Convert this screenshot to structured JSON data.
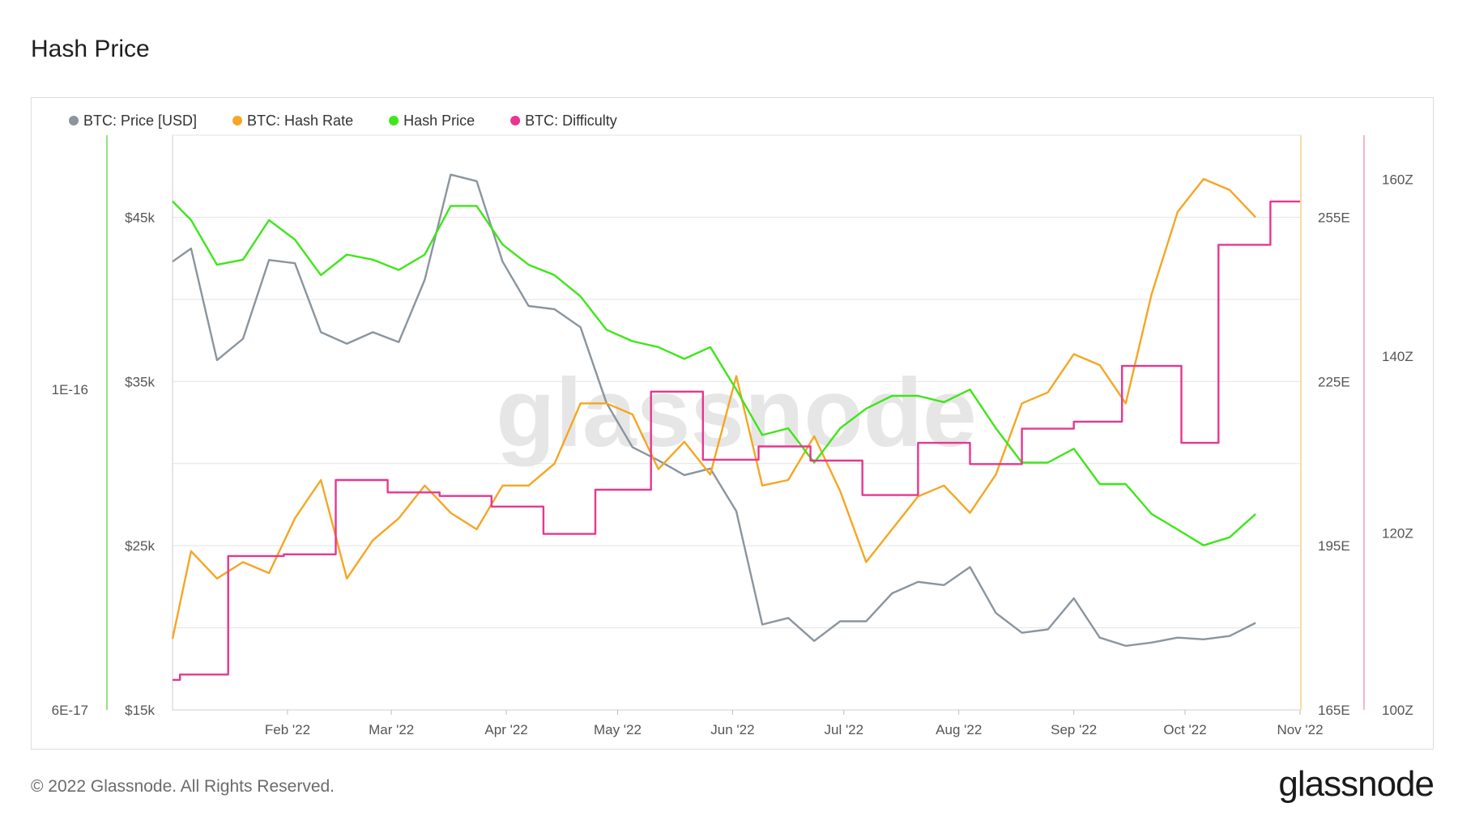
{
  "page": {
    "title": "Hash Price",
    "copyright": "© 2022 Glassnode. All Rights Reserved.",
    "logo_text": "glassnode",
    "watermark": "glassnode"
  },
  "chart_data": {
    "type": "line",
    "title": "Hash Price",
    "grid": true,
    "legend_position": "top-left",
    "x_ticks": [
      "Feb '22",
      "Mar '22",
      "Apr '22",
      "May '22",
      "Jun '22",
      "Jul '22",
      "Aug '22",
      "Sep '22",
      "Oct '22",
      "Nov '22"
    ],
    "x_range": [
      "2022-01-01",
      "2022-11-01"
    ],
    "axes": {
      "hash_price": {
        "side": "left",
        "scale": "log",
        "range": [
          6e-17,
          1.5e-16
        ],
        "ticks": [
          "6E-17",
          "1E-16"
        ],
        "color": "#7ed35c"
      },
      "price": {
        "side": "left",
        "range": [
          15000,
          50000
        ],
        "ticks": [
          "$15k",
          "$25k",
          "$35k",
          "$45k"
        ],
        "color": "#9aa3ab"
      },
      "hash_rate": {
        "side": "right",
        "unit": "EH/s",
        "range": [
          165,
          270
        ],
        "ticks": [
          "165E",
          "195E",
          "225E",
          "255E"
        ],
        "color": "#f5a623"
      },
      "difficulty": {
        "side": "right",
        "unit": "T",
        "range": [
          100,
          165
        ],
        "ticks": [
          "100Z",
          "120Z",
          "140Z",
          "160Z"
        ],
        "color": "#e8368f"
      }
    },
    "series": [
      {
        "name": "BTC: Price [USD]",
        "axis": "price",
        "color": "#8a959e",
        "style": "line",
        "points": [
          [
            "2022-01-01",
            42300
          ],
          [
            "2022-01-06",
            43100
          ],
          [
            "2022-01-13",
            36300
          ],
          [
            "2022-01-20",
            37600
          ],
          [
            "2022-01-27",
            42400
          ],
          [
            "2022-02-03",
            42200
          ],
          [
            "2022-02-10",
            38000
          ],
          [
            "2022-02-17",
            37300
          ],
          [
            "2022-02-24",
            38000
          ],
          [
            "2022-03-03",
            37400
          ],
          [
            "2022-03-10",
            41200
          ],
          [
            "2022-03-17",
            47600
          ],
          [
            "2022-03-24",
            47200
          ],
          [
            "2022-03-31",
            42300
          ],
          [
            "2022-04-07",
            39600
          ],
          [
            "2022-04-14",
            39400
          ],
          [
            "2022-04-21",
            38300
          ],
          [
            "2022-04-28",
            33700
          ],
          [
            "2022-05-05",
            31000
          ],
          [
            "2022-05-12",
            30200
          ],
          [
            "2022-05-19",
            29300
          ],
          [
            "2022-05-26",
            29700
          ],
          [
            "2022-06-02",
            27100
          ],
          [
            "2022-06-09",
            20200
          ],
          [
            "2022-06-16",
            20600
          ],
          [
            "2022-06-23",
            19200
          ],
          [
            "2022-06-30",
            20400
          ],
          [
            "2022-07-07",
            20400
          ],
          [
            "2022-07-14",
            22100
          ],
          [
            "2022-07-21",
            22800
          ],
          [
            "2022-07-28",
            22600
          ],
          [
            "2022-08-04",
            23700
          ],
          [
            "2022-08-11",
            20900
          ],
          [
            "2022-08-18",
            19700
          ],
          [
            "2022-08-25",
            19900
          ],
          [
            "2022-09-01",
            21800
          ],
          [
            "2022-09-08",
            19400
          ],
          [
            "2022-09-15",
            18900
          ],
          [
            "2022-09-22",
            19100
          ],
          [
            "2022-09-29",
            19400
          ],
          [
            "2022-10-06",
            19300
          ],
          [
            "2022-10-13",
            19500
          ],
          [
            "2022-10-20",
            20300
          ]
        ]
      },
      {
        "name": "BTC: Hash Rate",
        "axis": "hash_rate",
        "color": "#f5a623",
        "style": "line",
        "points": [
          [
            "2022-01-01",
            178
          ],
          [
            "2022-01-06",
            194
          ],
          [
            "2022-01-13",
            189
          ],
          [
            "2022-01-20",
            192
          ],
          [
            "2022-01-27",
            190
          ],
          [
            "2022-02-03",
            200
          ],
          [
            "2022-02-10",
            207
          ],
          [
            "2022-02-17",
            189
          ],
          [
            "2022-02-24",
            196
          ],
          [
            "2022-03-03",
            200
          ],
          [
            "2022-03-10",
            206
          ],
          [
            "2022-03-17",
            201
          ],
          [
            "2022-03-24",
            198
          ],
          [
            "2022-03-31",
            206
          ],
          [
            "2022-04-07",
            206
          ],
          [
            "2022-04-14",
            210
          ],
          [
            "2022-04-21",
            221
          ],
          [
            "2022-04-28",
            221
          ],
          [
            "2022-05-05",
            219
          ],
          [
            "2022-05-12",
            209
          ],
          [
            "2022-05-19",
            214
          ],
          [
            "2022-05-26",
            208
          ],
          [
            "2022-06-02",
            226
          ],
          [
            "2022-06-09",
            206
          ],
          [
            "2022-06-16",
            207
          ],
          [
            "2022-06-23",
            215
          ],
          [
            "2022-06-30",
            205
          ],
          [
            "2022-07-07",
            192
          ],
          [
            "2022-07-14",
            198
          ],
          [
            "2022-07-21",
            204
          ],
          [
            "2022-07-28",
            206
          ],
          [
            "2022-08-04",
            201
          ],
          [
            "2022-08-11",
            208
          ],
          [
            "2022-08-18",
            221
          ],
          [
            "2022-08-25",
            223
          ],
          [
            "2022-09-01",
            230
          ],
          [
            "2022-09-08",
            228
          ],
          [
            "2022-09-15",
            221
          ],
          [
            "2022-09-22",
            241
          ],
          [
            "2022-09-29",
            256
          ],
          [
            "2022-10-06",
            262
          ],
          [
            "2022-10-13",
            260
          ],
          [
            "2022-10-20",
            255
          ]
        ]
      },
      {
        "name": "Hash Price",
        "axis": "hash_price",
        "color": "#3ee61a",
        "style": "line",
        "points": [
          [
            "2022-01-01",
            1.35e-16
          ],
          [
            "2022-01-06",
            1.31e-16
          ],
          [
            "2022-01-13",
            1.22e-16
          ],
          [
            "2022-01-20",
            1.23e-16
          ],
          [
            "2022-01-27",
            1.31e-16
          ],
          [
            "2022-02-03",
            1.27e-16
          ],
          [
            "2022-02-10",
            1.2e-16
          ],
          [
            "2022-02-17",
            1.24e-16
          ],
          [
            "2022-02-24",
            1.23e-16
          ],
          [
            "2022-03-03",
            1.21e-16
          ],
          [
            "2022-03-10",
            1.24e-16
          ],
          [
            "2022-03-17",
            1.34e-16
          ],
          [
            "2022-03-24",
            1.34e-16
          ],
          [
            "2022-03-31",
            1.26e-16
          ],
          [
            "2022-04-07",
            1.22e-16
          ],
          [
            "2022-04-14",
            1.2e-16
          ],
          [
            "2022-04-21",
            1.16e-16
          ],
          [
            "2022-04-28",
            1.1e-16
          ],
          [
            "2022-05-05",
            1.08e-16
          ],
          [
            "2022-05-12",
            1.07e-16
          ],
          [
            "2022-05-19",
            1.05e-16
          ],
          [
            "2022-05-26",
            1.07e-16
          ],
          [
            "2022-06-02",
            1e-16
          ],
          [
            "2022-06-09",
            9.3e-17
          ],
          [
            "2022-06-16",
            9.4e-17
          ],
          [
            "2022-06-23",
            8.9e-17
          ],
          [
            "2022-06-30",
            9.4e-17
          ],
          [
            "2022-07-07",
            9.7e-17
          ],
          [
            "2022-07-14",
            9.9e-17
          ],
          [
            "2022-07-21",
            9.9e-17
          ],
          [
            "2022-07-28",
            9.8e-17
          ],
          [
            "2022-08-04",
            1e-16
          ],
          [
            "2022-08-11",
            9.4e-17
          ],
          [
            "2022-08-18",
            8.9e-17
          ],
          [
            "2022-08-25",
            8.9e-17
          ],
          [
            "2022-09-01",
            9.1e-17
          ],
          [
            "2022-09-08",
            8.6e-17
          ],
          [
            "2022-09-15",
            8.6e-17
          ],
          [
            "2022-09-22",
            8.2e-17
          ],
          [
            "2022-09-29",
            8e-17
          ],
          [
            "2022-10-06",
            7.8e-17
          ],
          [
            "2022-10-13",
            7.9e-17
          ],
          [
            "2022-10-20",
            8.2e-17
          ]
        ]
      },
      {
        "name": "BTC: Difficulty",
        "axis": "difficulty",
        "color": "#e8368f",
        "style": "step",
        "points": [
          [
            "2022-01-01",
            103.4
          ],
          [
            "2022-01-03",
            104.0
          ],
          [
            "2022-01-16",
            117.4
          ],
          [
            "2022-01-31",
            117.6
          ],
          [
            "2022-02-14",
            126.0
          ],
          [
            "2022-02-28",
            124.6
          ],
          [
            "2022-03-14",
            124.2
          ],
          [
            "2022-03-28",
            123.0
          ],
          [
            "2022-04-11",
            119.9
          ],
          [
            "2022-04-25",
            124.9
          ],
          [
            "2022-05-10",
            136.0
          ],
          [
            "2022-05-24",
            128.3
          ],
          [
            "2022-06-08",
            129.8
          ],
          [
            "2022-06-22",
            128.2
          ],
          [
            "2022-07-06",
            124.3
          ],
          [
            "2022-07-21",
            130.2
          ],
          [
            "2022-08-04",
            127.8
          ],
          [
            "2022-08-18",
            131.8
          ],
          [
            "2022-09-01",
            132.6
          ],
          [
            "2022-09-14",
            138.9
          ],
          [
            "2022-09-30",
            130.2
          ],
          [
            "2022-10-10",
            152.6
          ],
          [
            "2022-10-24",
            157.5
          ]
        ]
      }
    ]
  }
}
